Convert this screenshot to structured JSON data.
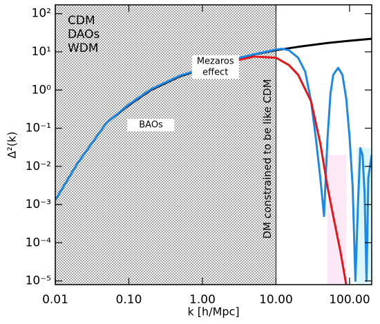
{
  "chart_data": {
    "type": "line",
    "xlabel": "k [h/Mpc]",
    "ylabel": "Δ²(k)",
    "log_x": true,
    "log_y": true,
    "xlim": [
      0.01,
      200
    ],
    "ylim": [
      8e-06,
      170
    ],
    "xticks": [
      0.01,
      {
        "value": 0.1,
        "label": "0.10"
      },
      {
        "value": 1,
        "label": "1.00"
      },
      {
        "value": 10,
        "label": "10.00"
      },
      {
        "value": 100,
        "label": "100.00"
      }
    ],
    "yticks": [
      {
        "value": 1e-05,
        "label": "10⁻⁵"
      },
      {
        "value": 0.0001,
        "label": "10⁻⁴"
      },
      {
        "value": 0.001,
        "label": "10⁻³"
      },
      {
        "value": 0.01,
        "label": "10⁻²"
      },
      {
        "value": 0.1,
        "label": "10⁻¹"
      },
      {
        "value": 1,
        "label": "10⁰"
      },
      {
        "value": 10,
        "label": "10¹"
      },
      {
        "value": 100,
        "label": "10²"
      }
    ],
    "legend": "upper left",
    "shaded_region": {
      "x": [
        0.01,
        10
      ],
      "label": "DM constrained to be like CDM"
    },
    "annotations": [
      {
        "text": [
          "Mezaros",
          "effect"
        ],
        "x": 1.5,
        "y": 4
      },
      {
        "text": [
          "BAOs"
        ],
        "x": 0.2,
        "y": 0.12
      }
    ],
    "series": [
      {
        "name": "CDM",
        "color": "#000000",
        "x": [
          0.01,
          0.02,
          0.05,
          0.1,
          0.2,
          0.5,
          1,
          2,
          5,
          10,
          20,
          50,
          100,
          200
        ],
        "values": [
          0.0013,
          0.012,
          0.14,
          0.4,
          1.0,
          2.3,
          3.5,
          5.5,
          8.5,
          11,
          13.5,
          17,
          19.5,
          22
        ]
      },
      {
        "name": "DAOs",
        "color": "#1e88e5",
        "x": [
          0.01,
          0.02,
          0.05,
          0.1,
          0.2,
          0.5,
          1,
          2,
          5,
          10,
          12,
          15,
          20,
          25,
          30,
          35,
          40,
          45,
          50,
          55,
          60,
          70,
          80,
          90,
          100,
          110,
          120,
          130,
          140,
          150,
          160,
          170,
          180,
          200
        ],
        "values": [
          0.0013,
          0.012,
          0.14,
          0.42,
          1.05,
          2.4,
          3.6,
          5.6,
          8.6,
          11.5,
          12,
          11,
          7,
          3,
          0.5,
          0.05,
          0.005,
          0.0005,
          0.05,
          0.8,
          2.5,
          3.8,
          2.5,
          0.6,
          0.06,
          0.003,
          1e-05,
          0.001,
          0.03,
          0.02,
          0.002,
          1e-05,
          0.005,
          0.02
        ]
      },
      {
        "name": "WDM",
        "color": "#e3161b",
        "x": [
          2,
          5,
          10,
          15,
          20,
          30,
          40,
          50,
          60,
          75,
          90
        ],
        "values": [
          5,
          7.5,
          7,
          4.5,
          2.5,
          0.5,
          0.04,
          0.003,
          0.0005,
          6e-05,
          8e-06
        ]
      }
    ]
  }
}
